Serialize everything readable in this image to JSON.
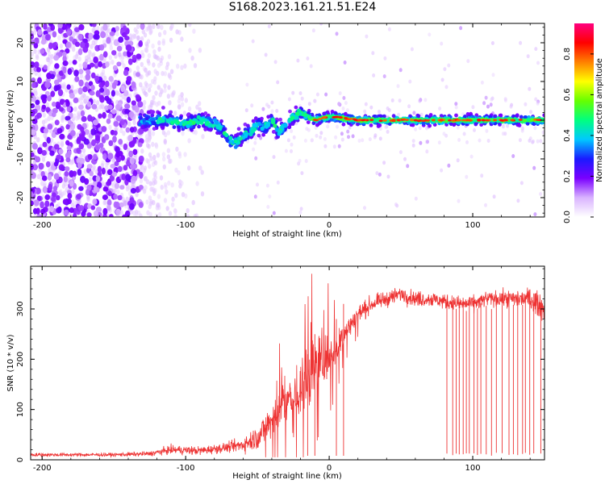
{
  "title": "S168.2023.161.21.51.E24",
  "chart_data": [
    {
      "type": "heatmap",
      "xlabel": "Height of straight line (km)",
      "ylabel": "Frequency (Hz)",
      "xlim": [
        -208,
        150
      ],
      "ylim": [
        -25,
        25
      ],
      "x_ticks": [
        -200,
        -100,
        0,
        100
      ],
      "y_ticks": [
        -20,
        -10,
        0,
        10,
        20
      ],
      "colorbar": {
        "label": "Normalized spectral amplitude",
        "range": [
          0.0,
          0.95
        ],
        "ticks": [
          0.0,
          0.2,
          0.4,
          0.6,
          0.8
        ],
        "colors": [
          "#ffffff",
          "#d9b3ff",
          "#7a00ff",
          "#1a1aff",
          "#00c8ff",
          "#00ff80",
          "#66ff00",
          "#ffff00",
          "#ff8000",
          "#ff0000",
          "#ff0080"
        ]
      },
      "ridge_center": {
        "x": [
          -130,
          -115,
          -100,
          -90,
          -80,
          -75,
          -70,
          -65,
          -60,
          -55,
          -50,
          -45,
          -40,
          -35,
          -30,
          -25,
          -20,
          -10,
          0,
          20,
          50,
          100,
          150
        ],
        "y": [
          0,
          0,
          -1,
          0,
          -1,
          -2,
          -5,
          -6,
          -4,
          -3,
          -1,
          -2,
          0,
          -3,
          -1,
          1,
          2,
          0,
          1,
          0,
          0,
          0,
          0
        ]
      },
      "noise_region_x": [
        -208,
        -130
      ]
    },
    {
      "type": "line",
      "xlabel": "Height of straight line (km)",
      "ylabel": "SNR (10 * v/v)",
      "xlim": [
        -208,
        150
      ],
      "ylim": [
        0,
        385
      ],
      "x_ticks": [
        -200,
        -100,
        0,
        100
      ],
      "y_ticks": [
        0,
        100,
        200,
        300
      ],
      "color": "#ee3333",
      "envelope": {
        "x": [
          -208,
          -150,
          -125,
          -110,
          -90,
          -70,
          -60,
          -50,
          -45,
          -40,
          -35,
          -30,
          -25,
          -20,
          -15,
          -10,
          -5,
          0,
          5,
          10,
          20,
          30,
          40,
          50,
          60,
          70,
          80,
          90,
          100,
          110,
          120,
          130,
          140,
          150
        ],
        "median": [
          10,
          10,
          12,
          20,
          18,
          25,
          30,
          45,
          60,
          80,
          100,
          130,
          110,
          150,
          150,
          190,
          200,
          210,
          220,
          250,
          290,
          310,
          320,
          330,
          320,
          320,
          315,
          310,
          310,
          320,
          320,
          320,
          320,
          300
        ],
        "spread": [
          6,
          6,
          8,
          14,
          14,
          16,
          25,
          40,
          50,
          60,
          70,
          90,
          90,
          100,
          110,
          110,
          90,
          80,
          60,
          40,
          30,
          25,
          25,
          25,
          25,
          25,
          25,
          25,
          25,
          25,
          25,
          30,
          35,
          40
        ]
      },
      "dropouts_x_range": [
        82,
        148
      ]
    }
  ]
}
